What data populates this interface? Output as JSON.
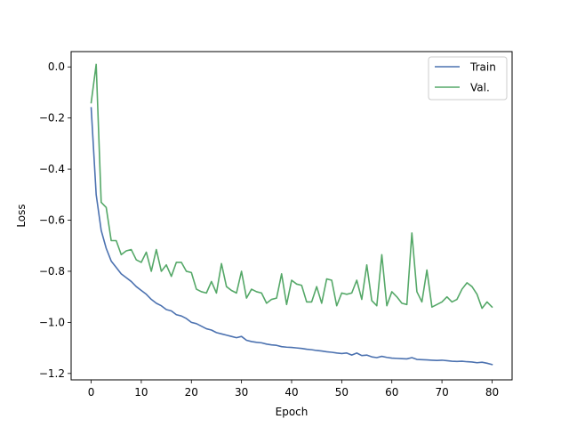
{
  "chart_data": {
    "type": "line",
    "title": "",
    "xlabel": "Epoch",
    "ylabel": "Loss",
    "xlim": [
      -4,
      84
    ],
    "ylim": [
      -1.225,
      0.06
    ],
    "xticks": [
      0,
      10,
      20,
      30,
      40,
      50,
      60,
      70,
      80
    ],
    "yticks": [
      0.0,
      -0.2,
      -0.4,
      -0.6,
      -0.8,
      -1.0,
      -1.2
    ],
    "ytick_labels": [
      "0.0",
      "−0.2",
      "−0.4",
      "−0.6",
      "−0.8",
      "−1.0",
      "−1.2"
    ],
    "grid": false,
    "legend": "top-right",
    "series": [
      {
        "name": "Train",
        "color": "#4c72b0",
        "values": [
          -0.16,
          -0.5,
          -0.64,
          -0.71,
          -0.76,
          -0.785,
          -0.81,
          -0.825,
          -0.84,
          -0.86,
          -0.875,
          -0.89,
          -0.91,
          -0.925,
          -0.935,
          -0.95,
          -0.955,
          -0.97,
          -0.975,
          -0.985,
          -1.0,
          -1.005,
          -1.015,
          -1.025,
          -1.03,
          -1.04,
          -1.045,
          -1.05,
          -1.055,
          -1.06,
          -1.055,
          -1.07,
          -1.075,
          -1.078,
          -1.08,
          -1.085,
          -1.088,
          -1.09,
          -1.095,
          -1.097,
          -1.098,
          -1.1,
          -1.102,
          -1.105,
          -1.107,
          -1.11,
          -1.112,
          -1.115,
          -1.117,
          -1.12,
          -1.122,
          -1.12,
          -1.128,
          -1.12,
          -1.13,
          -1.128,
          -1.135,
          -1.138,
          -1.133,
          -1.137,
          -1.14,
          -1.141,
          -1.142,
          -1.143,
          -1.138,
          -1.145,
          -1.146,
          -1.147,
          -1.148,
          -1.149,
          -1.148,
          -1.15,
          -1.152,
          -1.153,
          -1.152,
          -1.154,
          -1.155,
          -1.158,
          -1.156,
          -1.16,
          -1.165
        ]
      },
      {
        "name": "Val.",
        "color": "#55a868",
        "values": [
          -0.14,
          0.01,
          -0.53,
          -0.55,
          -0.68,
          -0.68,
          -0.735,
          -0.72,
          -0.715,
          -0.755,
          -0.765,
          -0.725,
          -0.8,
          -0.715,
          -0.8,
          -0.775,
          -0.82,
          -0.765,
          -0.765,
          -0.8,
          -0.805,
          -0.87,
          -0.88,
          -0.885,
          -0.84,
          -0.885,
          -0.77,
          -0.86,
          -0.875,
          -0.885,
          -0.8,
          -0.905,
          -0.87,
          -0.88,
          -0.885,
          -0.925,
          -0.91,
          -0.905,
          -0.81,
          -0.93,
          -0.835,
          -0.85,
          -0.855,
          -0.92,
          -0.92,
          -0.86,
          -0.925,
          -0.83,
          -0.835,
          -0.935,
          -0.885,
          -0.89,
          -0.885,
          -0.835,
          -0.91,
          -0.775,
          -0.915,
          -0.935,
          -0.735,
          -0.935,
          -0.88,
          -0.9,
          -0.925,
          -0.93,
          -0.65,
          -0.88,
          -0.92,
          -0.795,
          -0.94,
          -0.93,
          -0.92,
          -0.9,
          -0.92,
          -0.91,
          -0.87,
          -0.845,
          -0.86,
          -0.89,
          -0.945,
          -0.92,
          -0.94
        ]
      }
    ]
  }
}
